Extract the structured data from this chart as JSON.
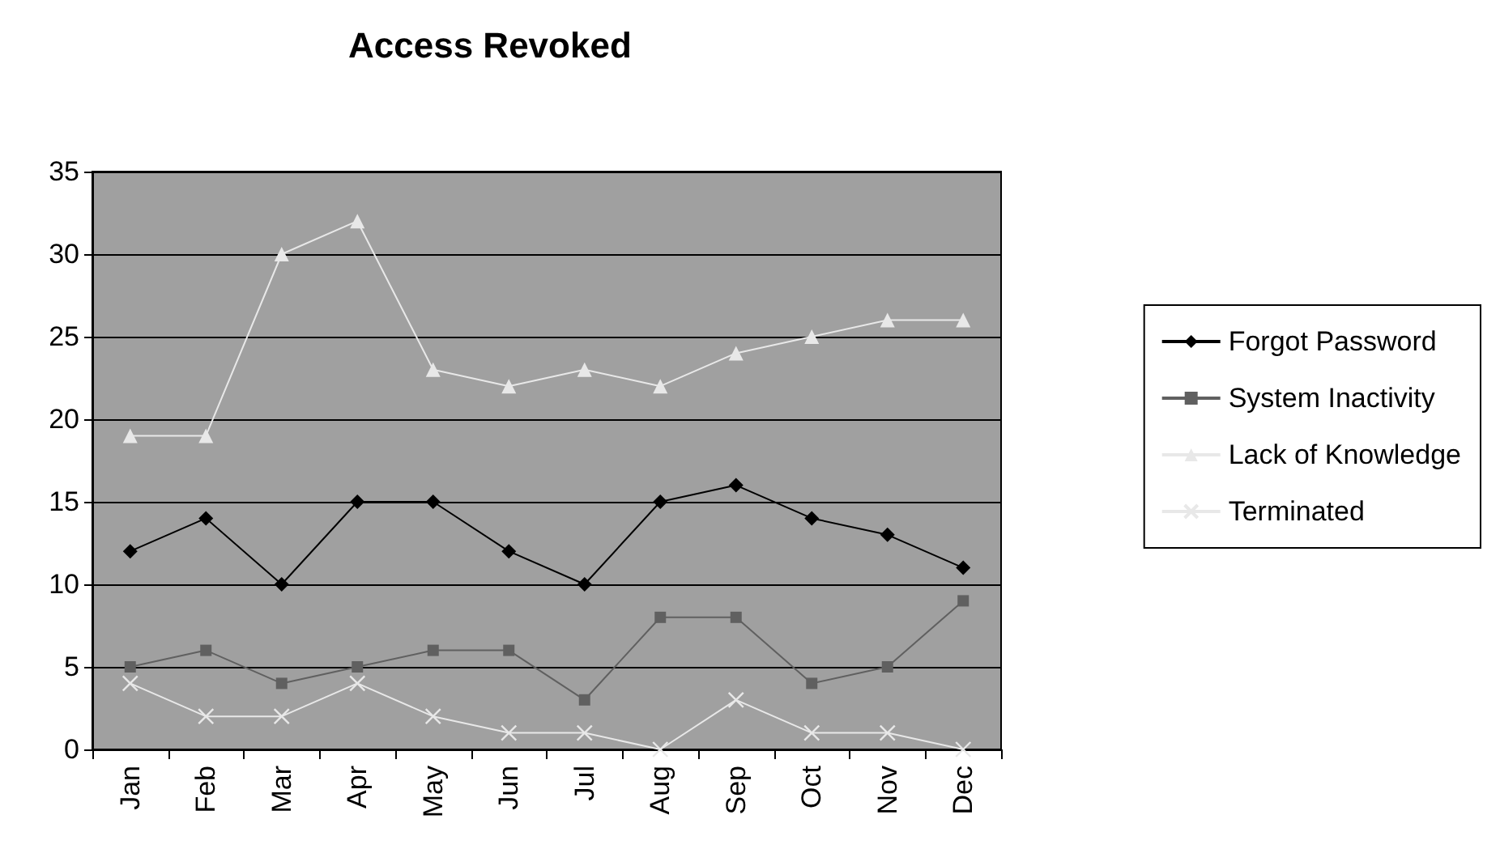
{
  "chart_data": {
    "type": "line",
    "title": "Access Revoked",
    "categories": [
      "Jan",
      "Feb",
      "Mar",
      "Apr",
      "May",
      "Jun",
      "Jul",
      "Aug",
      "Sep",
      "Oct",
      "Nov",
      "Dec"
    ],
    "series": [
      {
        "name": "Forgot Password",
        "color": "#000000",
        "marker": "diamond",
        "values": [
          12,
          14,
          10,
          15,
          15,
          12,
          10,
          15,
          16,
          14,
          13,
          11
        ]
      },
      {
        "name": "System Inactivity",
        "color": "#606060",
        "marker": "square",
        "values": [
          5,
          6,
          4,
          5,
          6,
          6,
          3,
          8,
          8,
          4,
          5,
          9
        ]
      },
      {
        "name": "Lack of Knowledge",
        "color": "#e8e8e8",
        "marker": "triangle",
        "values": [
          19,
          19,
          30,
          32,
          23,
          22,
          23,
          22,
          24,
          25,
          26,
          26
        ]
      },
      {
        "name": "Terminated",
        "color": "#e8e8e8",
        "marker": "cross",
        "values": [
          4,
          2,
          2,
          4,
          2,
          1,
          1,
          0,
          3,
          1,
          1,
          0
        ]
      }
    ],
    "ylim": [
      0,
      35
    ],
    "yticks": [
      0,
      5,
      10,
      15,
      20,
      25,
      30,
      35
    ],
    "grid": "y",
    "legend": "right",
    "line_style": "solid"
  }
}
